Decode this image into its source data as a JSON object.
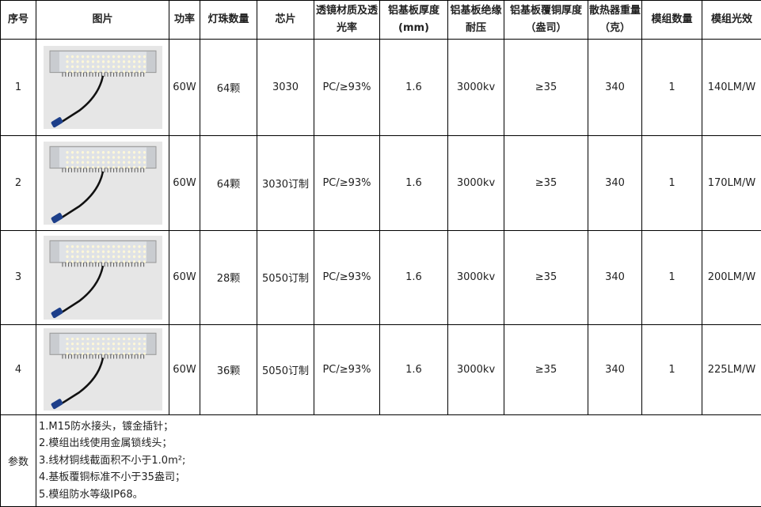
{
  "headers": [
    "序号",
    "图片",
    "功率",
    "灯珠数量",
    "芯片",
    "透镜材质及透光率",
    "铝基板厚度(mm)",
    "铝基板绝缘耐压",
    "铝基板覆铜厚度（盎司）",
    "散热器重量（克）",
    "模组数量",
    "模组光效"
  ],
  "rows": [
    {
      "no": "1",
      "power": "60W",
      "leds": "64颗",
      "chip": "3030",
      "lens": "PC/≥93%",
      "thickness": "1.6",
      "voltage": "3000kv",
      "copper": "≥35",
      "weight": "340",
      "qty": "1",
      "efficacy": "140LM/W"
    },
    {
      "no": "2",
      "power": "60W",
      "leds": "64颗",
      "chip": "3030订制",
      "lens": "PC/≥93%",
      "thickness": "1.6",
      "voltage": "3000kv",
      "copper": "≥35",
      "weight": "340",
      "qty": "1",
      "efficacy": "170LM/W"
    },
    {
      "no": "3",
      "power": "60W",
      "leds": "28颗",
      "chip": "5050订制",
      "lens": "PC/≥93%",
      "thickness": "1.6",
      "voltage": "3000kv",
      "copper": "≥35",
      "weight": "340",
      "qty": "1",
      "efficacy": "200LM/W"
    },
    {
      "no": "4",
      "power": "60W",
      "leds": "36颗",
      "chip": "5050订制",
      "lens": "PC/≥93%",
      "thickness": "1.6",
      "voltage": "3000kv",
      "copper": "≥35",
      "weight": "340",
      "qty": "1",
      "efficacy": "225LM/W"
    }
  ],
  "notes": {
    "label": "参数",
    "lines": [
      "1.M15防水接头，镀金插针；",
      "2.模组出线使用金属锁线头；",
      "3.线材铜线截面积不小于1.0m²;",
      "4.基板覆铜标准不小于35盎司；",
      "5.模组防水等级IP68。"
    ]
  }
}
